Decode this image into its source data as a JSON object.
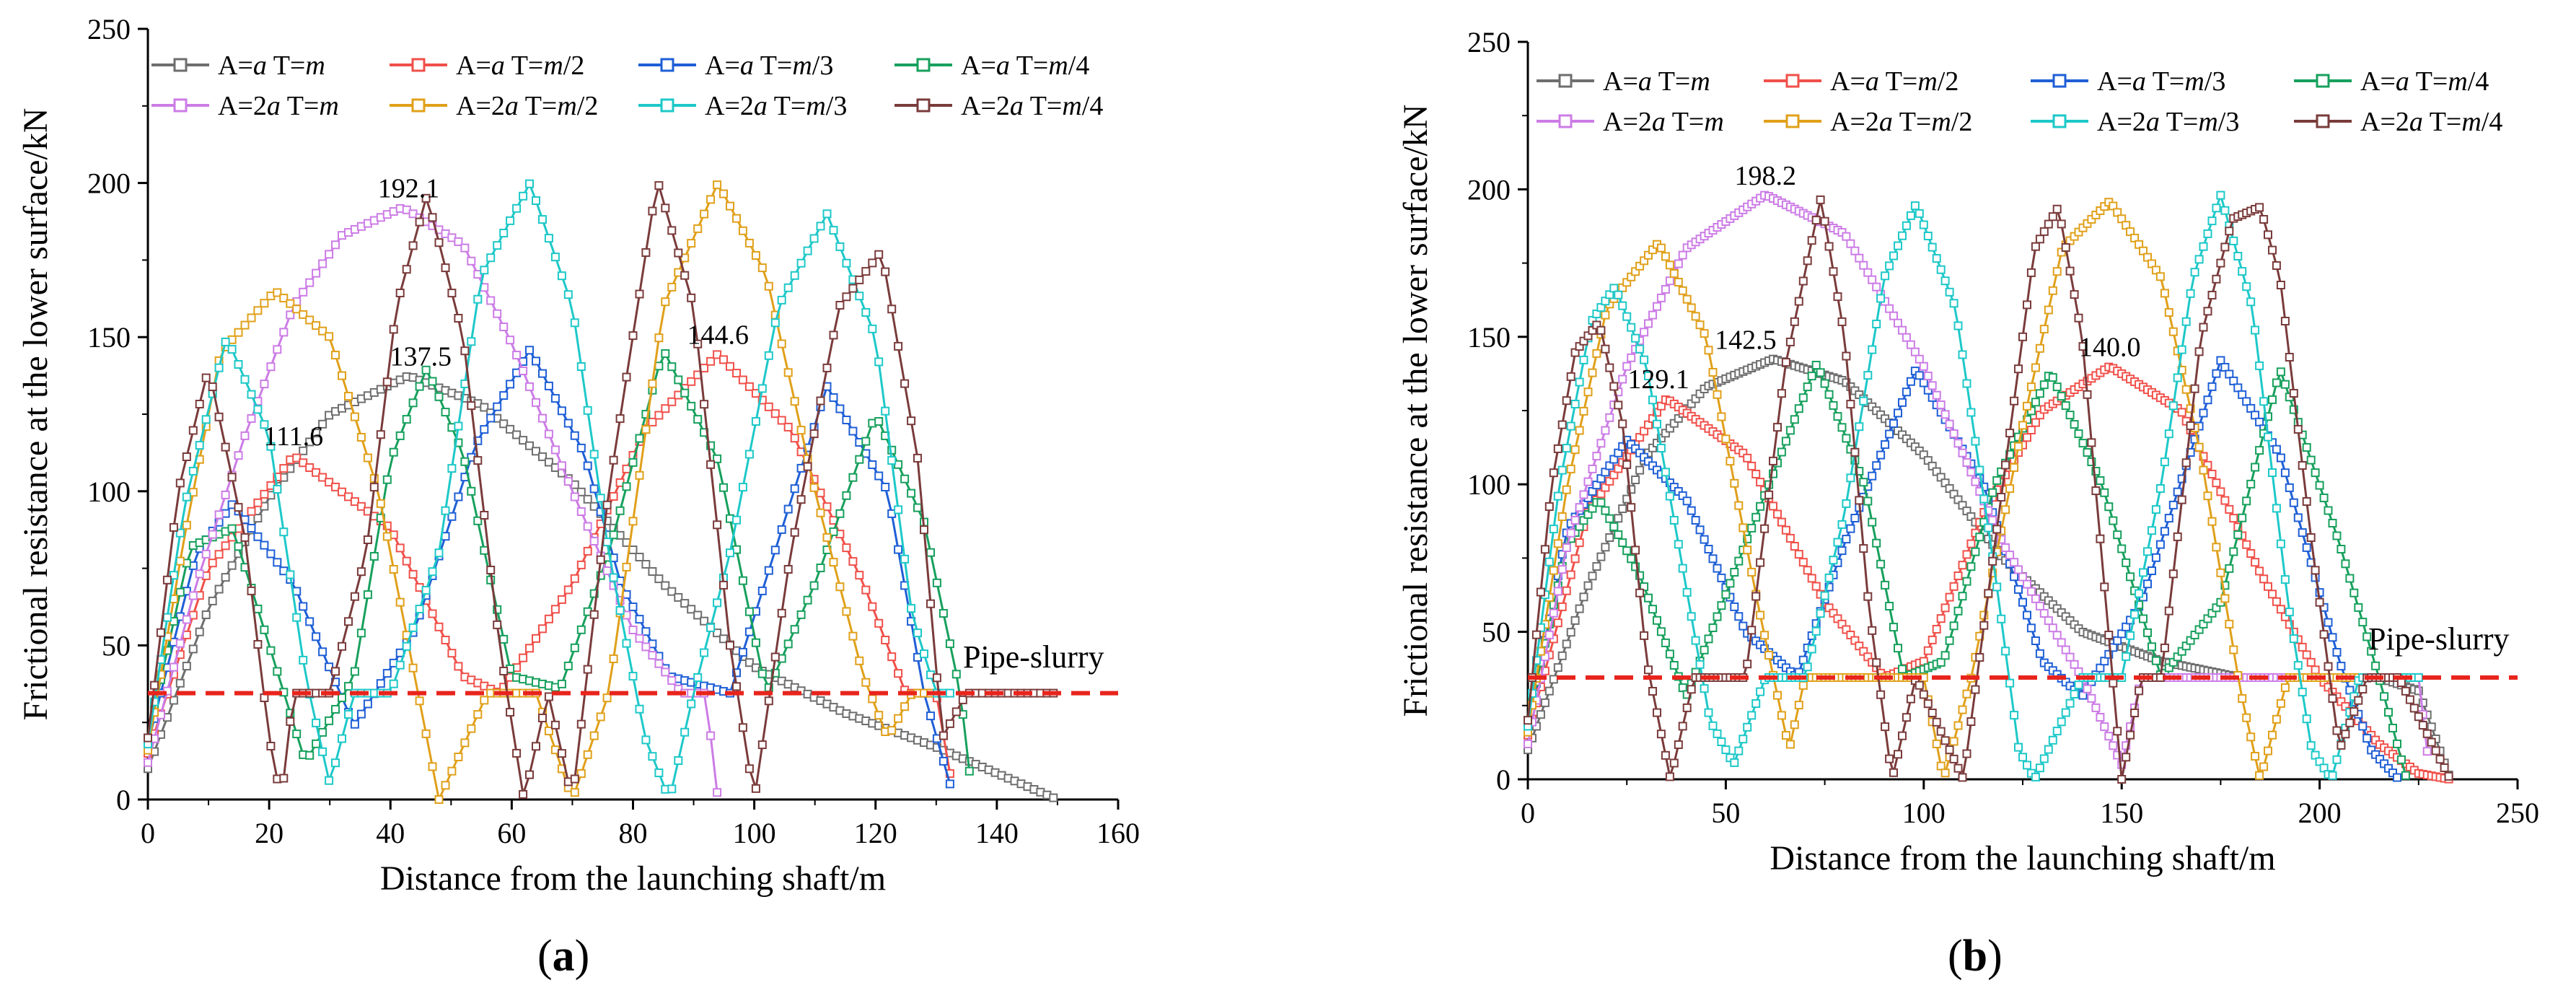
{
  "series_styles": [
    {
      "name": "A=a T=m",
      "A": "A=",
      "a": "a",
      "T": " T=",
      "t": "m",
      "color": "#6e6e6e"
    },
    {
      "name": "A=a T=m/2",
      "A": "A=",
      "a": "a",
      "T": " T=",
      "t": "m",
      "tsuf": "/2",
      "color": "#f0504a"
    },
    {
      "name": "A=a T=m/3",
      "A": "A=",
      "a": "a",
      "T": " T=",
      "t": "m",
      "tsuf": "/3",
      "color": "#1f5fd6"
    },
    {
      "name": "A=a T=m/4",
      "A": "A=",
      "a": "a",
      "T": " T=",
      "t": "m",
      "tsuf": "/4",
      "color": "#17a05d"
    },
    {
      "name": "A=2a T=m",
      "A": "A=2",
      "a": "a",
      "T": " T=",
      "t": "m",
      "color": "#cc7ce6"
    },
    {
      "name": "A=2a T=m/2",
      "A": "A=2",
      "a": "a",
      "T": " T=",
      "t": "m",
      "tsuf": "/2",
      "color": "#e0a01a"
    },
    {
      "name": "A=2a T=m/3",
      "A": "A=2",
      "a": "a",
      "T": " T=",
      "t": "m",
      "tsuf": "/3",
      "color": "#1ec8c8"
    },
    {
      "name": "A=2a T=m/4",
      "A": "A=2",
      "a": "a",
      "T": " T=",
      "t": "m",
      "tsuf": "/4",
      "color": "#7a3b3b"
    }
  ],
  "pipe_slurry_color": "#e8241c",
  "chart_data": [
    {
      "panel": "(a)",
      "type": "line",
      "xlabel": "Distance from the launching shaft/m",
      "ylabel": "Frictional resistance at the lower surface/kN",
      "xlim": [
        0,
        160
      ],
      "ylim": [
        0,
        250
      ],
      "xticks": [
        0,
        20,
        40,
        60,
        80,
        100,
        120,
        140,
        160
      ],
      "yticks": [
        0,
        50,
        100,
        150,
        200,
        250
      ],
      "threshold": {
        "value": 34.5,
        "label": "Pipe-slurry"
      },
      "annotations": [
        {
          "text": "192.1",
          "x": 43,
          "y": 192.1
        },
        {
          "text": "137.5",
          "x": 45,
          "y": 137.5
        },
        {
          "text": "111.6",
          "x": 24,
          "y": 111.6
        },
        {
          "text": "144.6",
          "x": 94,
          "y": 144.6
        }
      ],
      "series": [
        {
          "name": "A=a T=m",
          "x": [
            0,
            10,
            20,
            30,
            43,
            55,
            70,
            85,
            100,
            115,
            130,
            150
          ],
          "y": [
            10,
            62,
            98,
            125,
            137.5,
            128,
            103,
            70,
            43,
            28,
            17,
            0
          ]
        },
        {
          "name": "A=a T=m/2",
          "x": [
            0,
            10,
            24,
            40,
            52,
            58,
            70,
            82,
            94,
            106,
            118,
            125,
            130,
            133
          ],
          "y": [
            15,
            75,
            111.6,
            88,
            40,
            34.5,
            70,
            120,
            144.6,
            120,
            70,
            34.5,
            34.5,
            0
          ]
        },
        {
          "name": "A=a T=m/3",
          "x": [
            0,
            8,
            14,
            24,
            34,
            44,
            54,
            63,
            72,
            78,
            86,
            96,
            112,
            122,
            128,
            133
          ],
          "y": [
            18,
            80,
            96,
            70,
            24,
            55,
            115,
            146,
            112,
            70,
            40,
            34.5,
            134,
            100,
            34.5,
            0
          ]
        },
        {
          "name": "A=a T=m/4",
          "x": [
            0,
            7,
            14,
            20,
            26,
            34,
            40,
            46,
            52,
            60,
            68,
            76,
            85,
            94,
            102,
            110,
            120,
            128,
            134,
            136
          ],
          "y": [
            20,
            82,
            88,
            50,
            12,
            40,
            110,
            140,
            112,
            40,
            36,
            80,
            146,
            110,
            34.5,
            70,
            125,
            90,
            34.5,
            0
          ]
        },
        {
          "name": "A=2a T=m",
          "x": [
            0,
            8,
            16,
            24,
            32,
            42,
            52,
            60,
            70,
            80,
            88,
            92,
            94
          ],
          "y": [
            12,
            70,
            118,
            160,
            183,
            192.1,
            180,
            148,
            100,
            55,
            34.5,
            34.5,
            0
          ]
        },
        {
          "name": "A=2a T=m/2",
          "x": [
            0,
            6,
            12,
            21,
            30,
            38,
            44,
            48,
            56,
            64,
            70,
            76,
            85,
            94,
            102,
            110,
            118,
            122,
            126,
            130
          ],
          "y": [
            16,
            85,
            145,
            165,
            150,
            100,
            40,
            0,
            34.5,
            34.5,
            0,
            34.5,
            160,
            200,
            170,
            100,
            40,
            20,
            34.5,
            34.5
          ]
        },
        {
          "name": "A=2a T=m/3",
          "x": [
            0,
            6,
            13,
            20,
            26,
            30,
            34,
            40,
            48,
            55,
            63,
            70,
            76,
            82,
            86,
            90,
            96,
            104,
            112,
            120,
            126,
            130,
            133
          ],
          "y": [
            18,
            95,
            150,
            118,
            40,
            5,
            34.5,
            34.5,
            80,
            170,
            200,
            160,
            80,
            20,
            0,
            34.5,
            80,
            160,
            190,
            150,
            60,
            34.5,
            34.5
          ]
        },
        {
          "name": "A=2a T=m/4",
          "x": [
            0,
            5,
            10,
            16,
            20,
            22,
            24,
            30,
            36,
            41,
            46,
            52,
            58,
            62,
            66,
            70,
            76,
            84,
            90,
            96,
            100,
            106,
            114,
            121,
            127,
            131,
            135,
            150
          ],
          "y": [
            20,
            100,
            140,
            85,
            20,
            0,
            34.5,
            34.5,
            80,
            160,
            196,
            150,
            50,
            0,
            34.5,
            0,
            100,
            201,
            160,
            50,
            0,
            80,
            160,
            178,
            110,
            20,
            34.5,
            34.5
          ]
        }
      ]
    },
    {
      "panel": "(b)",
      "type": "line",
      "xlabel": "Distance from the launching shaft/m",
      "ylabel": "Frictional resistance at the lower surface/kN",
      "xlim": [
        0,
        250
      ],
      "ylim": [
        0,
        250
      ],
      "xticks": [
        0,
        50,
        100,
        150,
        200,
        250
      ],
      "yticks": [
        0,
        50,
        100,
        150,
        200,
        250
      ],
      "threshold": {
        "value": 34.5,
        "label": "Pipe-slurry"
      },
      "annotations": [
        {
          "text": "198.2",
          "x": 60,
          "y": 198.2
        },
        {
          "text": "142.5",
          "x": 55,
          "y": 142.5
        },
        {
          "text": "129.1",
          "x": 33,
          "y": 129.1
        },
        {
          "text": "140.0",
          "x": 147,
          "y": 140.0
        }
      ],
      "series": [
        {
          "name": "A=a T=m",
          "x": [
            0,
            15,
            30,
            45,
            62,
            80,
            100,
            120,
            140,
            160,
            180,
            200,
            215,
            225,
            233
          ],
          "y": [
            10,
            65,
            110,
            133,
            142.5,
            135,
            110,
            75,
            50,
            40,
            34.5,
            34.5,
            34.5,
            30,
            0
          ]
        },
        {
          "name": "A=a T=m/2",
          "x": [
            0,
            15,
            35,
            55,
            75,
            90,
            100,
            115,
            130,
            147,
            165,
            185,
            200,
            215,
            225,
            233
          ],
          "y": [
            15,
            90,
            129.1,
            110,
            60,
            34.5,
            40,
            90,
            125,
            140.0,
            125,
            70,
            34.5,
            12,
            2,
            0
          ]
        },
        {
          "name": "A=a T=m/3",
          "x": [
            0,
            10,
            25,
            40,
            55,
            68,
            80,
            98,
            115,
            130,
            140,
            155,
            175,
            190,
            205,
            213,
            220
          ],
          "y": [
            18,
            85,
            115,
            95,
            50,
            34.5,
            80,
            139,
            100,
            40,
            28,
            60,
            142,
            110,
            40,
            10,
            0
          ]
        },
        {
          "name": "A=a T=m/4",
          "x": [
            0,
            10,
            18,
            28,
            40,
            55,
            73,
            85,
            95,
            105,
            118,
            132,
            145,
            160,
            175,
            190,
            205,
            215,
            222
          ],
          "y": [
            20,
            80,
            95,
            70,
            28,
            80,
            141,
            100,
            34.5,
            40,
            100,
            138,
            100,
            34.5,
            60,
            139,
            80,
            34.5,
            0
          ]
        },
        {
          "name": "A=2a T=m",
          "x": [
            0,
            10,
            25,
            40,
            60,
            80,
            100,
            120,
            140,
            150,
            155,
            180,
            200,
            220,
            225,
            228
          ],
          "y": [
            12,
            80,
            140,
            180,
            198.2,
            185,
            140,
            80,
            34.5,
            5,
            34.5,
            34.5,
            34.5,
            34.5,
            34.5,
            0
          ]
        },
        {
          "name": "A=2a T=m/2",
          "x": [
            0,
            10,
            20,
            33,
            45,
            58,
            66,
            70,
            80,
            90,
            100,
            105,
            112,
            125,
            135,
            147,
            160,
            170,
            180,
            185,
            192,
            220
          ],
          "y": [
            16,
            100,
            160,
            182,
            150,
            60,
            10,
            34.5,
            34.5,
            34.5,
            34.5,
            0,
            34.5,
            120,
            180,
            196,
            170,
            110,
            30,
            0,
            34.5,
            34.5
          ]
        },
        {
          "name": "A=2a T=m/3",
          "x": [
            0,
            8,
            16,
            22,
            30,
            38,
            46,
            52,
            60,
            70,
            80,
            90,
            98,
            108,
            118,
            124,
            128,
            140,
            150,
            160,
            168,
            175,
            183,
            192,
            198,
            203,
            210,
            225
          ],
          "y": [
            18,
            100,
            155,
            167,
            140,
            80,
            20,
            5,
            34.5,
            34.5,
            90,
            170,
            195,
            160,
            70,
            10,
            0,
            34.5,
            34.5,
            100,
            170,
            198,
            160,
            60,
            10,
            0,
            34.5,
            34.5
          ]
        },
        {
          "name": "A=2a T=m/4",
          "x": [
            0,
            6,
            12,
            18,
            24,
            30,
            36,
            42,
            55,
            65,
            74,
            80,
            86,
            92,
            98,
            110,
            120,
            128,
            134,
            140,
            150,
            155,
            160,
            170,
            178,
            185,
            190,
            198,
            205,
            212,
            220,
            233
          ],
          "y": [
            20,
            100,
            145,
            155,
            120,
            40,
            0,
            34.5,
            34.5,
            140,
            197,
            150,
            60,
            0,
            34.5,
            0,
            100,
            180,
            194,
            150,
            0,
            34.5,
            34.5,
            150,
            190,
            194,
            170,
            80,
            10,
            34.5,
            34.5,
            0
          ]
        }
      ]
    }
  ]
}
